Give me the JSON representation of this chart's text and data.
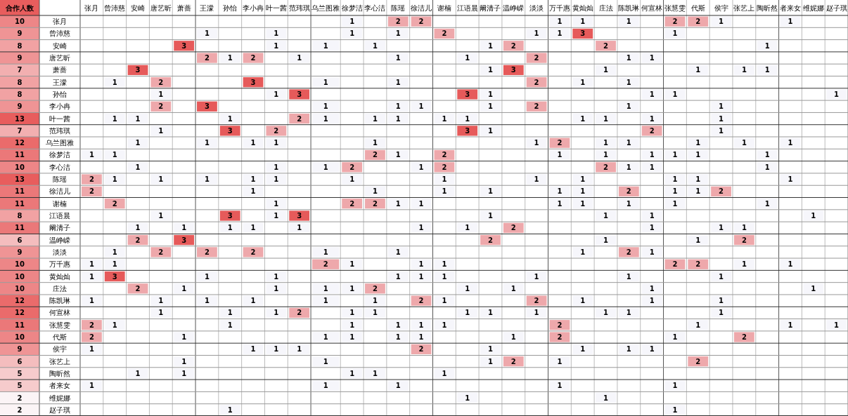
{
  "chart_data": {
    "type": "heatmap",
    "y2label": "合作人数",
    "data_labels": true,
    "categories": [
      "张月",
      "曾沛慈",
      "安崎",
      "唐艺昕",
      "萧蔷",
      "王濛",
      "孙怡",
      "李小冉",
      "叶一茜",
      "范玮琪",
      "乌兰图雅",
      "徐梦洁",
      "李心洁",
      "陈瑶",
      "徐洁儿",
      "谢楠",
      "江语晨",
      "阚清子",
      "温峥嵘",
      "淡淡",
      "万千惠",
      "黄灿灿",
      "庄法",
      "陈凯琳",
      "何宣林",
      "张慧雯",
      "代斯",
      "侯宇",
      "张艺上",
      "陶昕然",
      "者来女",
      "维妮娜",
      "赵子琪"
    ],
    "y_categories": [
      "张月",
      "曾沛慈",
      "安崎",
      "唐艺昕",
      "萧蔷",
      "王濛",
      "孙怡",
      "李小冉",
      "叶一茜",
      "范玮琪",
      "乌兰图雅",
      "徐梦洁",
      "李心洁",
      "陈瑶",
      "徐洁儿",
      "谢楠",
      "江语晨",
      "阚清子",
      "温峥嵘",
      "淡淡",
      "万千惠",
      "黄灿灿",
      "庄法",
      "陈凯琳",
      "何宣林",
      "张慧雯",
      "代斯",
      "侯宇",
      "张艺上",
      "陶昕然",
      "者来女",
      "维妮娜",
      "赵子琪"
    ],
    "y2_categories": [
      "10",
      "9",
      "8",
      "9",
      "7",
      "8",
      "8",
      "9",
      "13",
      "7",
      "12",
      "11",
      "10",
      "13",
      "11",
      "11",
      "8",
      "11",
      "6",
      "9",
      "10",
      "10",
      "10",
      "12",
      "12",
      "11",
      "10",
      "9",
      "6",
      "5",
      "5",
      "2",
      "2"
    ],
    "cells": [
      [
        null,
        null,
        null,
        null,
        null,
        null,
        null,
        null,
        null,
        null,
        null,
        1,
        null,
        2,
        2,
        null,
        null,
        null,
        null,
        null,
        1,
        1,
        null,
        1,
        null,
        2,
        2,
        1,
        null,
        null,
        1,
        null,
        null
      ],
      [
        null,
        null,
        null,
        null,
        null,
        1,
        null,
        null,
        1,
        null,
        null,
        1,
        null,
        1,
        null,
        2,
        null,
        null,
        null,
        1,
        1,
        3,
        null,
        null,
        null,
        1,
        null,
        null,
        null,
        null,
        null,
        null,
        null
      ],
      [
        null,
        null,
        null,
        null,
        3,
        null,
        null,
        null,
        1,
        null,
        1,
        null,
        1,
        null,
        null,
        null,
        null,
        1,
        2,
        null,
        null,
        null,
        2,
        null,
        null,
        null,
        null,
        null,
        null,
        1,
        null,
        null,
        null
      ],
      [
        null,
        null,
        null,
        null,
        null,
        2,
        1,
        2,
        null,
        1,
        null,
        null,
        null,
        1,
        null,
        null,
        1,
        null,
        null,
        2,
        null,
        null,
        null,
        1,
        1,
        null,
        null,
        null,
        null,
        null,
        null,
        null,
        null
      ],
      [
        null,
        null,
        3,
        null,
        null,
        null,
        null,
        null,
        null,
        null,
        null,
        null,
        null,
        null,
        null,
        null,
        null,
        1,
        3,
        null,
        null,
        null,
        1,
        null,
        null,
        null,
        1,
        null,
        1,
        1,
        null,
        null,
        null
      ],
      [
        null,
        1,
        null,
        2,
        null,
        null,
        null,
        3,
        null,
        null,
        1,
        null,
        null,
        1,
        null,
        null,
        null,
        null,
        null,
        2,
        null,
        1,
        null,
        1,
        null,
        null,
        null,
        null,
        null,
        null,
        null,
        null,
        null
      ],
      [
        null,
        null,
        null,
        1,
        null,
        null,
        null,
        null,
        1,
        3,
        null,
        null,
        null,
        null,
        null,
        null,
        3,
        1,
        null,
        null,
        null,
        null,
        null,
        null,
        1,
        1,
        null,
        null,
        null,
        null,
        null,
        null,
        1
      ],
      [
        null,
        null,
        null,
        2,
        null,
        3,
        null,
        null,
        null,
        null,
        1,
        null,
        null,
        1,
        1,
        null,
        null,
        1,
        null,
        2,
        null,
        null,
        null,
        1,
        null,
        null,
        null,
        1,
        null,
        null,
        null,
        null,
        null
      ],
      [
        null,
        1,
        1,
        null,
        null,
        null,
        1,
        null,
        null,
        2,
        1,
        null,
        1,
        1,
        null,
        1,
        1,
        null,
        null,
        null,
        null,
        1,
        1,
        null,
        1,
        null,
        null,
        1,
        null,
        null,
        null,
        null,
        null
      ],
      [
        null,
        null,
        null,
        1,
        null,
        null,
        3,
        null,
        2,
        null,
        null,
        null,
        null,
        null,
        null,
        null,
        3,
        1,
        null,
        null,
        null,
        null,
        null,
        null,
        2,
        null,
        null,
        1,
        null,
        null,
        null,
        null,
        null
      ],
      [
        null,
        null,
        1,
        null,
        null,
        1,
        null,
        1,
        1,
        null,
        null,
        null,
        1,
        null,
        null,
        null,
        null,
        null,
        null,
        1,
        2,
        null,
        1,
        1,
        null,
        null,
        1,
        null,
        1,
        null,
        1,
        null,
        null
      ],
      [
        1,
        1,
        null,
        null,
        null,
        null,
        null,
        null,
        null,
        null,
        null,
        null,
        2,
        1,
        null,
        2,
        null,
        null,
        null,
        null,
        1,
        null,
        1,
        null,
        1,
        1,
        1,
        null,
        null,
        1,
        null,
        null,
        null
      ],
      [
        null,
        null,
        1,
        null,
        null,
        null,
        null,
        null,
        1,
        null,
        1,
        2,
        null,
        null,
        1,
        2,
        null,
        null,
        null,
        null,
        null,
        null,
        2,
        1,
        1,
        null,
        null,
        null,
        null,
        1,
        null,
        null,
        null
      ],
      [
        2,
        1,
        null,
        1,
        null,
        1,
        null,
        1,
        1,
        null,
        null,
        1,
        null,
        null,
        null,
        1,
        null,
        null,
        null,
        1,
        null,
        1,
        null,
        null,
        null,
        1,
        1,
        null,
        null,
        null,
        1,
        null,
        null
      ],
      [
        2,
        null,
        null,
        null,
        null,
        null,
        null,
        1,
        null,
        null,
        null,
        null,
        1,
        null,
        null,
        1,
        null,
        1,
        null,
        null,
        1,
        1,
        null,
        2,
        null,
        1,
        1,
        2,
        null,
        null,
        null,
        null,
        null
      ],
      [
        null,
        2,
        null,
        null,
        null,
        null,
        null,
        null,
        1,
        null,
        null,
        2,
        2,
        1,
        1,
        null,
        null,
        null,
        null,
        null,
        1,
        1,
        null,
        1,
        null,
        1,
        null,
        null,
        null,
        1,
        null,
        null,
        null
      ],
      [
        null,
        null,
        null,
        1,
        null,
        null,
        3,
        null,
        1,
        3,
        null,
        null,
        null,
        null,
        null,
        null,
        null,
        1,
        null,
        null,
        null,
        null,
        1,
        null,
        1,
        null,
        null,
        null,
        null,
        null,
        null,
        1,
        null
      ],
      [
        null,
        null,
        1,
        null,
        1,
        null,
        1,
        1,
        null,
        1,
        null,
        null,
        null,
        null,
        1,
        null,
        1,
        null,
        2,
        null,
        null,
        null,
        null,
        null,
        1,
        null,
        null,
        1,
        1,
        null,
        null,
        null,
        null
      ],
      [
        null,
        null,
        2,
        null,
        3,
        null,
        null,
        null,
        null,
        null,
        null,
        null,
        null,
        null,
        null,
        null,
        null,
        2,
        null,
        null,
        null,
        null,
        1,
        null,
        null,
        null,
        1,
        null,
        2,
        null,
        null,
        null,
        null
      ],
      [
        null,
        1,
        null,
        2,
        null,
        2,
        null,
        2,
        null,
        null,
        1,
        null,
        null,
        1,
        null,
        null,
        null,
        null,
        null,
        null,
        null,
        1,
        null,
        2,
        1,
        null,
        null,
        null,
        null,
        null,
        null,
        null,
        null
      ],
      [
        1,
        1,
        null,
        null,
        null,
        null,
        null,
        null,
        null,
        null,
        2,
        1,
        null,
        null,
        1,
        1,
        null,
        null,
        null,
        null,
        null,
        null,
        null,
        null,
        null,
        2,
        2,
        null,
        1,
        null,
        1,
        null,
        null
      ],
      [
        1,
        3,
        null,
        null,
        null,
        1,
        null,
        null,
        1,
        null,
        null,
        null,
        null,
        1,
        1,
        1,
        null,
        null,
        null,
        1,
        null,
        null,
        null,
        1,
        null,
        null,
        null,
        1,
        null,
        null,
        null,
        null,
        null
      ],
      [
        null,
        null,
        2,
        null,
        1,
        null,
        null,
        null,
        1,
        null,
        1,
        1,
        2,
        null,
        null,
        null,
        1,
        null,
        1,
        null,
        null,
        null,
        null,
        null,
        1,
        null,
        null,
        null,
        null,
        null,
        null,
        1,
        null
      ],
      [
        1,
        null,
        null,
        1,
        null,
        1,
        null,
        1,
        null,
        null,
        1,
        null,
        1,
        null,
        2,
        1,
        null,
        null,
        null,
        2,
        null,
        1,
        null,
        null,
        1,
        null,
        null,
        1,
        null,
        null,
        null,
        null,
        null
      ],
      [
        null,
        null,
        null,
        1,
        null,
        null,
        1,
        null,
        1,
        2,
        null,
        1,
        1,
        null,
        null,
        null,
        1,
        1,
        null,
        1,
        null,
        null,
        1,
        1,
        null,
        null,
        null,
        1,
        null,
        null,
        null,
        null,
        null
      ],
      [
        2,
        1,
        null,
        null,
        null,
        null,
        1,
        null,
        null,
        null,
        null,
        1,
        null,
        1,
        1,
        1,
        null,
        null,
        null,
        null,
        2,
        null,
        null,
        null,
        null,
        null,
        1,
        null,
        null,
        null,
        1,
        null,
        1
      ],
      [
        2,
        null,
        null,
        null,
        1,
        null,
        null,
        null,
        null,
        null,
        1,
        1,
        null,
        1,
        1,
        null,
        null,
        null,
        1,
        null,
        2,
        null,
        null,
        null,
        null,
        1,
        null,
        null,
        2,
        null,
        null,
        null,
        null
      ],
      [
        1,
        null,
        null,
        null,
        null,
        null,
        null,
        1,
        1,
        1,
        null,
        null,
        null,
        null,
        2,
        null,
        null,
        1,
        null,
        null,
        null,
        1,
        null,
        1,
        1,
        null,
        null,
        null,
        null,
        null,
        null,
        null,
        null
      ],
      [
        null,
        null,
        null,
        null,
        1,
        null,
        null,
        null,
        null,
        null,
        1,
        null,
        null,
        null,
        null,
        null,
        null,
        1,
        2,
        null,
        1,
        null,
        null,
        null,
        null,
        null,
        2,
        null,
        null,
        null,
        null,
        null,
        null
      ],
      [
        null,
        null,
        1,
        null,
        1,
        null,
        null,
        null,
        null,
        null,
        null,
        1,
        1,
        null,
        null,
        1,
        null,
        null,
        null,
        null,
        null,
        null,
        null,
        null,
        null,
        null,
        null,
        null,
        null,
        null,
        null,
        null,
        null
      ],
      [
        1,
        null,
        null,
        null,
        null,
        null,
        null,
        null,
        null,
        null,
        1,
        null,
        null,
        1,
        null,
        null,
        null,
        null,
        null,
        null,
        1,
        null,
        null,
        null,
        null,
        1,
        null,
        null,
        null,
        null,
        null,
        null,
        null
      ],
      [
        null,
        null,
        null,
        null,
        null,
        null,
        null,
        null,
        null,
        null,
        null,
        null,
        null,
        null,
        null,
        null,
        1,
        null,
        null,
        null,
        null,
        null,
        1,
        null,
        null,
        null,
        null,
        null,
        null,
        null,
        null,
        null,
        null
      ],
      [
        null,
        null,
        null,
        null,
        null,
        null,
        1,
        null,
        null,
        null,
        null,
        null,
        null,
        null,
        null,
        null,
        null,
        null,
        null,
        null,
        null,
        null,
        null,
        null,
        null,
        1,
        null,
        null,
        null,
        null,
        null,
        null,
        null
      ]
    ]
  }
}
